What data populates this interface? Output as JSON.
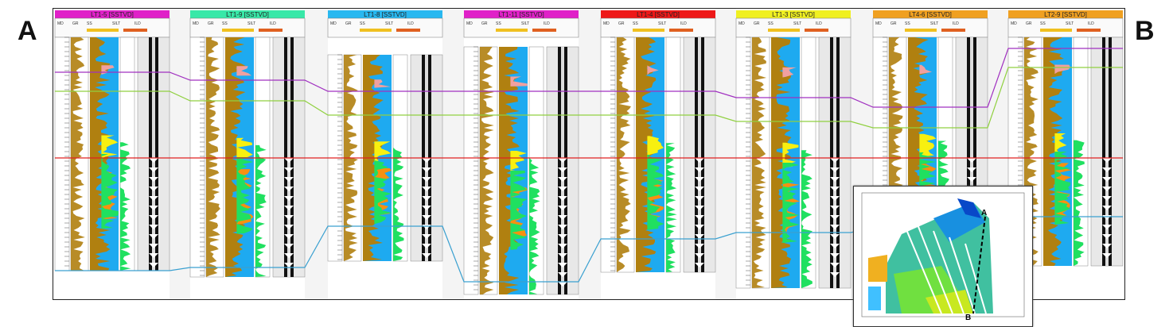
{
  "section": {
    "start_label": "A",
    "end_label": "B",
    "wells": [
      {
        "name": "LT1-5 [SSTVD]",
        "color": "#e020c8"
      },
      {
        "name": "LT1-9 [SSTVD]",
        "color": "#38e8a8"
      },
      {
        "name": "LT1-8 [SSTVD]",
        "color": "#28b8f0"
      },
      {
        "name": "LT1-11 [SSTVD]",
        "color": "#e020c8"
      },
      {
        "name": "LT1-4 [SSTVD]",
        "color": "#ee1818"
      },
      {
        "name": "LT1-3 [SSTVD]",
        "color": "#f0f020"
      },
      {
        "name": "LT4-6 [SSTVD]",
        "color": "#f0a020"
      },
      {
        "name": "LT2-9 [SSTVD]",
        "color": "#f0a020"
      }
    ],
    "track_headers": [
      "MD",
      "GR",
      "SS",
      "SILT",
      "ILD"
    ],
    "horizon_colors": [
      "#a030c0",
      "#90d040",
      "#e02020",
      "#3aa0d0"
    ],
    "lithology_colors": {
      "sand": "#1eaaf0",
      "shale": "#b08010",
      "silt_green": "#20e060",
      "yellow": "#f8f010",
      "orange": "#f89010",
      "pink": "#f0a0a0"
    }
  },
  "inset_map": {
    "line_start": "A",
    "line_end": "B"
  }
}
